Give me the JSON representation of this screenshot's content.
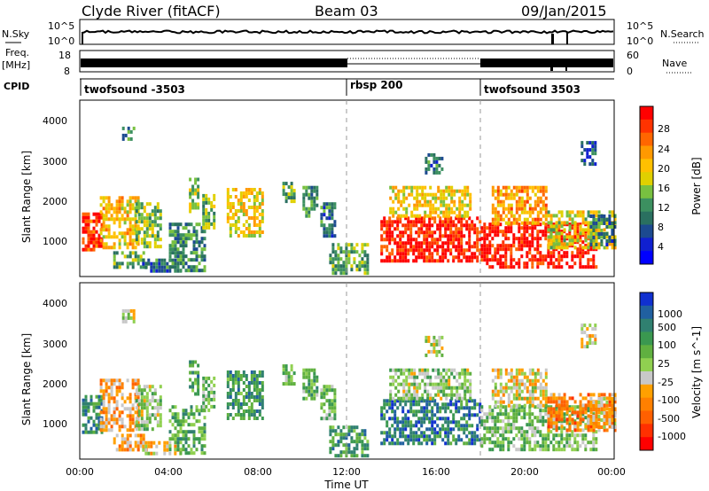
{
  "header": {
    "station": "Clyde River (fitACF)",
    "beam": "Beam 03",
    "date": "09/Jan/2015"
  },
  "noise_panel": {
    "left_label": "N.Sky",
    "right_label": "N.Search",
    "left_ticks": [
      "10^5",
      "10^0"
    ],
    "right_ticks": [
      "10^5",
      "10^0"
    ]
  },
  "freq_panel": {
    "left_label_1": "Freq.",
    "left_label_2": "[MHz]",
    "right_label": "Nave",
    "left_ticks": [
      "18",
      "8"
    ],
    "right_ticks": [
      "60",
      "0"
    ]
  },
  "cpid_panel": {
    "label": "CPID",
    "segments": [
      {
        "name": "twofsound -3503",
        "start_hour": 0
      },
      {
        "name": "rbsp 200",
        "start_hour": 12
      },
      {
        "name": "twofsound 3503",
        "start_hour": 18
      }
    ]
  },
  "colorbars": {
    "power": {
      "label": "Power [dB]",
      "ticks": [
        "28",
        "24",
        "20",
        "16",
        "12",
        "8",
        "4"
      ],
      "colors": [
        "#ff0000",
        "#ff3300",
        "#ff6600",
        "#ff9900",
        "#ffc000",
        "#e0d000",
        "#78c040",
        "#3c9060",
        "#2a7060",
        "#1c4a90",
        "#1020d0",
        "#0000ff"
      ]
    },
    "velocity": {
      "label": "Velocity [m s^-1]",
      "ticks": [
        "1000",
        "500",
        "100",
        "25",
        "-25",
        "-100",
        "-500",
        "-1000"
      ],
      "colors": [
        "#1030d0",
        "#2060a0",
        "#308070",
        "#3a9850",
        "#60b040",
        "#90d050",
        "#c8c8c8",
        "#ffa000",
        "#ff8000",
        "#ff6000",
        "#ff3000",
        "#ff0000"
      ]
    }
  },
  "chart_data": [
    {
      "type": "heatmap",
      "title": "Power",
      "ylabel": "Slant Range [km]",
      "xlabel": "",
      "xlim_hours": [
        0,
        24
      ],
      "ylim_km": [
        180,
        4500
      ],
      "yticks": [
        "1000",
        "2000",
        "3000",
        "4000"
      ],
      "clim_db": [
        0,
        32
      ],
      "regions": [
        {
          "t0": 0.1,
          "t1": 1.0,
          "r0": 800,
          "r1": 1750,
          "level": 0.88
        },
        {
          "t0": 0.9,
          "t1": 2.6,
          "r0": 850,
          "r1": 2150,
          "level": 0.62
        },
        {
          "t0": 2.5,
          "t1": 3.6,
          "r0": 900,
          "r1": 2000,
          "level": 0.45
        },
        {
          "t0": 1.9,
          "t1": 2.4,
          "r0": 3550,
          "r1": 3850,
          "level": 0.35
        },
        {
          "t0": 1.5,
          "t1": 3.0,
          "r0": 400,
          "r1": 800,
          "level": 0.4
        },
        {
          "t0": 2.8,
          "t1": 4.5,
          "r0": 300,
          "r1": 620,
          "level": 0.28
        },
        {
          "t0": 4.0,
          "t1": 5.6,
          "r0": 300,
          "r1": 1500,
          "level": 0.35
        },
        {
          "t0": 4.9,
          "t1": 5.3,
          "r0": 1800,
          "r1": 2600,
          "level": 0.5
        },
        {
          "t0": 5.5,
          "t1": 6.0,
          "r0": 1400,
          "r1": 2200,
          "level": 0.45
        },
        {
          "t0": 6.6,
          "t1": 8.2,
          "r0": 1200,
          "r1": 2350,
          "level": 0.6
        },
        {
          "t0": 9.1,
          "t1": 9.6,
          "r0": 2000,
          "r1": 2500,
          "level": 0.4
        },
        {
          "t0": 10.0,
          "t1": 10.6,
          "r0": 1700,
          "r1": 2400,
          "level": 0.35
        },
        {
          "t0": 10.8,
          "t1": 11.4,
          "r0": 1200,
          "r1": 2000,
          "level": 0.3
        },
        {
          "t0": 11.2,
          "t1": 12.9,
          "r0": 250,
          "r1": 1000,
          "level": 0.4
        },
        {
          "t0": 13.5,
          "t1": 18.0,
          "r0": 600,
          "r1": 1650,
          "level": 0.92
        },
        {
          "t0": 13.9,
          "t1": 17.5,
          "r0": 1700,
          "r1": 2400,
          "level": 0.6
        },
        {
          "t0": 15.5,
          "t1": 16.3,
          "r0": 2700,
          "r1": 3200,
          "level": 0.3
        },
        {
          "t0": 18.0,
          "t1": 23.2,
          "r0": 450,
          "r1": 1500,
          "level": 0.95
        },
        {
          "t0": 18.5,
          "t1": 21.0,
          "r0": 1500,
          "r1": 2400,
          "level": 0.7
        },
        {
          "t0": 21.0,
          "t1": 24.0,
          "r0": 900,
          "r1": 1800,
          "level": 0.55
        },
        {
          "t0": 22.9,
          "t1": 24.0,
          "r0": 1000,
          "r1": 1700,
          "level": 0.3
        },
        {
          "t0": 22.5,
          "t1": 23.1,
          "r0": 2900,
          "r1": 3500,
          "level": 0.25
        }
      ]
    },
    {
      "type": "heatmap",
      "title": "Velocity",
      "ylabel": "Slant Range [km]",
      "xlabel": "Time UT",
      "xlim_hours": [
        0,
        24
      ],
      "ylim_km": [
        180,
        4500
      ],
      "yticks": [
        "1000",
        "2000",
        "3000",
        "4000"
      ],
      "xticks": [
        "00:00",
        "04:00",
        "08:00",
        "12:00",
        "16:00",
        "20:00",
        "00:00"
      ],
      "clim_ms": [
        -1000,
        1000
      ],
      "regions": [
        {
          "t0": 0.1,
          "t1": 1.0,
          "r0": 800,
          "r1": 1750,
          "level": 0.75
        },
        {
          "t0": 0.9,
          "t1": 2.6,
          "r0": 850,
          "r1": 2150,
          "level": 0.35
        },
        {
          "t0": 2.5,
          "t1": 3.6,
          "r0": 900,
          "r1": 2000,
          "level": 0.55
        },
        {
          "t0": 1.9,
          "t1": 2.4,
          "r0": 3550,
          "r1": 3850,
          "level": 0.5
        },
        {
          "t0": 1.5,
          "t1": 3.0,
          "r0": 400,
          "r1": 800,
          "level": 0.35
        },
        {
          "t0": 2.8,
          "t1": 4.5,
          "r0": 300,
          "r1": 620,
          "level": 0.45
        },
        {
          "t0": 4.0,
          "t1": 5.6,
          "r0": 300,
          "r1": 1500,
          "level": 0.65
        },
        {
          "t0": 4.9,
          "t1": 5.3,
          "r0": 1800,
          "r1": 2600,
          "level": 0.7
        },
        {
          "t0": 5.5,
          "t1": 6.0,
          "r0": 1400,
          "r1": 2200,
          "level": 0.6
        },
        {
          "t0": 6.6,
          "t1": 8.2,
          "r0": 1200,
          "r1": 2350,
          "level": 0.72
        },
        {
          "t0": 9.1,
          "t1": 9.6,
          "r0": 2000,
          "r1": 2500,
          "level": 0.6
        },
        {
          "t0": 10.0,
          "t1": 10.6,
          "r0": 1700,
          "r1": 2400,
          "level": 0.62
        },
        {
          "t0": 10.8,
          "t1": 11.4,
          "r0": 1200,
          "r1": 2000,
          "level": 0.6
        },
        {
          "t0": 11.2,
          "t1": 12.9,
          "r0": 250,
          "r1": 1000,
          "level": 0.7
        },
        {
          "t0": 13.5,
          "t1": 18.0,
          "r0": 600,
          "r1": 1650,
          "level": 0.8
        },
        {
          "t0": 13.9,
          "t1": 17.5,
          "r0": 1700,
          "r1": 2400,
          "level": 0.55
        },
        {
          "t0": 15.5,
          "t1": 16.3,
          "r0": 2700,
          "r1": 3200,
          "level": 0.5
        },
        {
          "t0": 18.0,
          "t1": 23.2,
          "r0": 450,
          "r1": 1500,
          "level": 0.6
        },
        {
          "t0": 18.5,
          "t1": 21.0,
          "r0": 1500,
          "r1": 2400,
          "level": 0.45
        },
        {
          "t0": 21.0,
          "t1": 24.0,
          "r0": 900,
          "r1": 1800,
          "level": 0.3
        },
        {
          "t0": 22.9,
          "t1": 24.0,
          "r0": 1000,
          "r1": 1700,
          "level": 0.4
        },
        {
          "t0": 22.5,
          "t1": 23.1,
          "r0": 2900,
          "r1": 3500,
          "level": 0.45
        }
      ]
    }
  ]
}
